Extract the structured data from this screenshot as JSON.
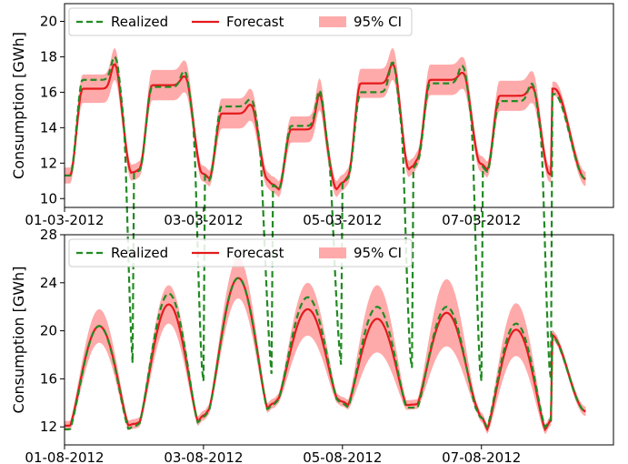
{
  "colors": {
    "realized": "#228b22",
    "forecast": "#e41a1c",
    "ci_fill": "#ffaaaa"
  },
  "chart_data": [
    {
      "type": "line",
      "ylabel": "Consumption [GWh]",
      "xlabel": "",
      "title": "",
      "xlim": [
        0,
        7.9
      ],
      "ylim": [
        9.5,
        21
      ],
      "yticks": [
        10,
        12,
        14,
        16,
        18,
        20
      ],
      "xticks": [
        {
          "value": 0,
          "label": "01-03-2012"
        },
        {
          "value": 2,
          "label": "03-03-2012"
        },
        {
          "value": 4,
          "label": "05-03-2012"
        },
        {
          "value": 6,
          "label": "07-03-2012"
        }
      ],
      "legend": {
        "position": "top-left",
        "entries": [
          "Realized",
          "Forecast",
          "95% CI"
        ]
      },
      "grid": false,
      "days": [
        {
          "min": 11.3,
          "pk1": 16.7,
          "pk2": 18.0,
          "fmin": 11.3,
          "fpk1": 16.2,
          "fpk2": 17.6,
          "w": 0.75
        },
        {
          "min": 11.6,
          "pk1": 16.3,
          "pk2": 17.2,
          "fmin": 11.7,
          "fpk1": 16.4,
          "fpk2": 16.9,
          "w": 0.75
        },
        {
          "min": 11.0,
          "pk1": 15.2,
          "pk2": 15.6,
          "fmin": 11.1,
          "fpk1": 14.8,
          "fpk2": 15.3,
          "w": 0.7
        },
        {
          "min": 10.5,
          "pk1": 14.1,
          "pk2": 16.1,
          "fmin": 10.5,
          "fpk1": 13.9,
          "fpk2": 15.9,
          "w": 0.7
        },
        {
          "min": 11.2,
          "pk1": 16.0,
          "pk2": 17.7,
          "fmin": 11.3,
          "fpk1": 16.5,
          "fpk2": 17.6,
          "w": 0.75
        },
        {
          "min": 12.1,
          "pk1": 16.5,
          "pk2": 17.5,
          "fmin": 12.3,
          "fpk1": 16.7,
          "fpk2": 17.1,
          "w": 0.75
        },
        {
          "min": 11.5,
          "pk1": 15.5,
          "pk2": 16.5,
          "fmin": 11.6,
          "fpk1": 15.8,
          "fpk2": 16.3,
          "w": 0.75
        }
      ],
      "end_value": 11.1
    },
    {
      "type": "line",
      "ylabel": "Consumption [GWh]",
      "xlabel": "",
      "title": "",
      "xlim": [
        0,
        7.9
      ],
      "ylim": [
        10.5,
        28
      ],
      "yticks": [
        12,
        16,
        20,
        24,
        28
      ],
      "xticks": [
        {
          "value": 0,
          "label": "01-08-2012"
        },
        {
          "value": 2,
          "label": "03-08-2012"
        },
        {
          "value": 4,
          "label": "05-08-2012"
        },
        {
          "value": 6,
          "label": "07-08-2012"
        }
      ],
      "legend": {
        "position": "top-left",
        "entries": [
          "Realized",
          "Forecast",
          "95% CI"
        ]
      },
      "grid": false,
      "days": [
        {
          "min": 11.8,
          "peak": 20.4,
          "fmin": 12.1,
          "fpeak": 20.4,
          "ci": 1.0
        },
        {
          "min": 12.3,
          "peak": 23.1,
          "fmin": 12.4,
          "fpeak": 22.2,
          "ci": 1.2
        },
        {
          "min": 13.4,
          "peak": 24.4,
          "fmin": 13.5,
          "fpeak": 24.4,
          "ci": 1.3
        },
        {
          "min": 14.3,
          "peak": 22.8,
          "fmin": 14.4,
          "fpeak": 21.8,
          "ci": 1.8
        },
        {
          "min": 13.6,
          "peak": 22.0,
          "fmin": 13.8,
          "fpeak": 21.0,
          "ci": 2.4
        },
        {
          "min": 13.6,
          "peak": 22.0,
          "fmin": 13.9,
          "fpeak": 21.5,
          "ci": 2.4
        },
        {
          "min": 11.9,
          "peak": 20.6,
          "fmin": 11.7,
          "fpeak": 20.1,
          "ci": 1.8
        }
      ],
      "end_value": 13.3
    }
  ]
}
